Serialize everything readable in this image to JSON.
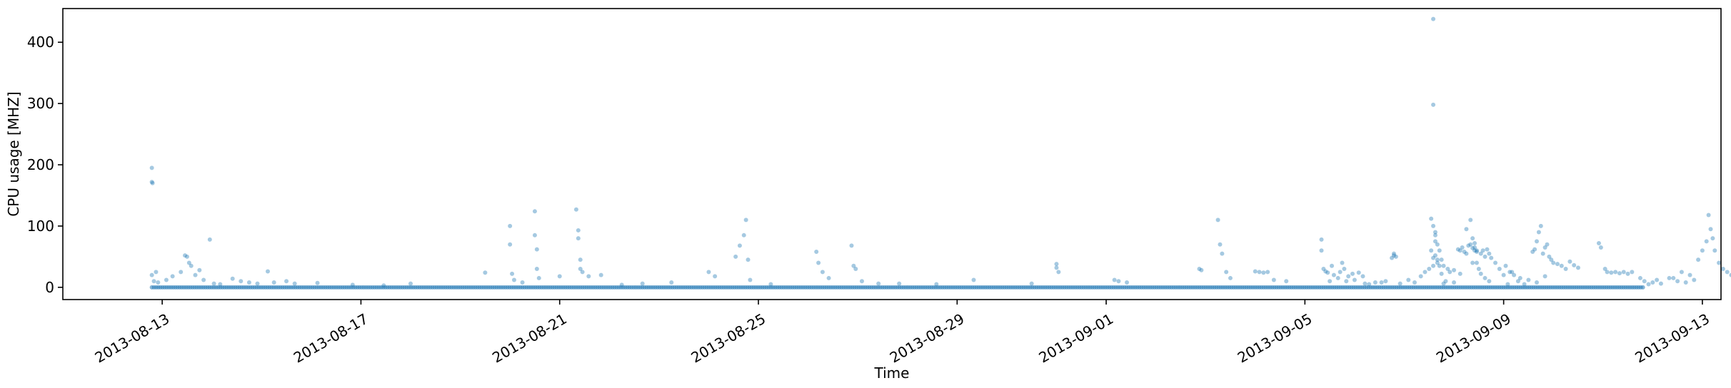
{
  "chart_data": {
    "type": "scatter",
    "title": "",
    "xlabel": "Time",
    "ylabel": "CPU usage [MHZ]",
    "x_type": "time",
    "xlim": [
      "2013-08-11T00:00",
      "2013-09-13T09:00"
    ],
    "ylim": [
      -20,
      455
    ],
    "x_ticks": [
      "2013-08-13",
      "2013-08-17",
      "2013-08-21",
      "2013-08-25",
      "2013-08-29",
      "2013-09-01",
      "2013-09-05",
      "2013-09-09",
      "2013-09-13"
    ],
    "y_ticks": [
      0,
      100,
      200,
      300,
      400
    ],
    "marker_color": "#1f77b4",
    "marker_alpha": 0.4,
    "grid": false,
    "baseline": {
      "start": "2013-08-12T19:00",
      "end": "2013-09-11T20:00",
      "value": 0
    },
    "series": [
      {
        "name": "CPU usage",
        "points": [
          [
            "2013-08-12T19:00",
            195
          ],
          [
            "2013-08-12T19:00",
            172
          ],
          [
            "2013-08-12T19:20",
            170
          ],
          [
            "2013-08-12T19:00",
            20
          ],
          [
            "2013-08-12T21:00",
            25
          ],
          [
            "2013-08-12T20:00",
            10
          ],
          [
            "2013-08-12T22:00",
            8
          ],
          [
            "2013-08-13T02:00",
            12
          ],
          [
            "2013-08-13T05:00",
            18
          ],
          [
            "2013-08-13T09:00",
            25
          ],
          [
            "2013-08-13T11:00",
            52
          ],
          [
            "2013-08-13T12:00",
            50
          ],
          [
            "2013-08-13T13:00",
            40
          ],
          [
            "2013-08-13T14:00",
            35
          ],
          [
            "2013-08-13T16:00",
            20
          ],
          [
            "2013-08-13T18:00",
            28
          ],
          [
            "2013-08-13T20:00",
            12
          ],
          [
            "2013-08-13T23:00",
            78
          ],
          [
            "2013-08-14T01:00",
            6
          ],
          [
            "2013-08-14T04:00",
            5
          ],
          [
            "2013-08-14T10:00",
            14
          ],
          [
            "2013-08-14T14:00",
            10
          ],
          [
            "2013-08-14T18:00",
            8
          ],
          [
            "2013-08-14T22:00",
            6
          ],
          [
            "2013-08-15T03:00",
            26
          ],
          [
            "2013-08-15T06:00",
            8
          ],
          [
            "2013-08-15T12:00",
            10
          ],
          [
            "2013-08-15T16:00",
            6
          ],
          [
            "2013-08-16T03:00",
            7
          ],
          [
            "2013-08-16T20:00",
            4
          ],
          [
            "2013-08-17T11:00",
            3
          ],
          [
            "2013-08-18T00:00",
            6
          ],
          [
            "2013-08-19T12:00",
            24
          ],
          [
            "2013-08-20T00:00",
            100
          ],
          [
            "2013-08-20T00:00",
            70
          ],
          [
            "2013-08-20T01:00",
            22
          ],
          [
            "2013-08-20T02:00",
            12
          ],
          [
            "2013-08-20T06:00",
            8
          ],
          [
            "2013-08-20T12:00",
            124
          ],
          [
            "2013-08-20T12:00",
            85
          ],
          [
            "2013-08-20T13:00",
            62
          ],
          [
            "2013-08-20T13:00",
            30
          ],
          [
            "2013-08-20T14:00",
            15
          ],
          [
            "2013-08-21T00:00",
            18
          ],
          [
            "2013-08-21T08:00",
            127
          ],
          [
            "2013-08-21T09:00",
            93
          ],
          [
            "2013-08-21T09:00",
            80
          ],
          [
            "2013-08-21T10:00",
            45
          ],
          [
            "2013-08-21T10:00",
            30
          ],
          [
            "2013-08-21T11:00",
            25
          ],
          [
            "2013-08-21T14:00",
            18
          ],
          [
            "2013-08-21T20:00",
            20
          ],
          [
            "2013-08-22T06:00",
            4
          ],
          [
            "2013-08-22T16:00",
            6
          ],
          [
            "2013-08-23T06:00",
            8
          ],
          [
            "2013-08-24T00:00",
            25
          ],
          [
            "2013-08-24T03:00",
            18
          ],
          [
            "2013-08-24T13:00",
            50
          ],
          [
            "2013-08-24T15:00",
            68
          ],
          [
            "2013-08-24T17:00",
            85
          ],
          [
            "2013-08-24T18:00",
            110
          ],
          [
            "2013-08-24T19:00",
            45
          ],
          [
            "2013-08-24T20:00",
            12
          ],
          [
            "2013-08-25T06:00",
            5
          ],
          [
            "2013-08-26T04:00",
            58
          ],
          [
            "2013-08-26T05:00",
            40
          ],
          [
            "2013-08-26T07:00",
            25
          ],
          [
            "2013-08-26T10:00",
            15
          ],
          [
            "2013-08-26T21:00",
            68
          ],
          [
            "2013-08-26T22:00",
            35
          ],
          [
            "2013-08-26T23:00",
            30
          ],
          [
            "2013-08-27T02:00",
            10
          ],
          [
            "2013-08-27T10:00",
            6
          ],
          [
            "2013-08-27T20:00",
            6
          ],
          [
            "2013-08-28T14:00",
            5
          ],
          [
            "2013-08-29T08:00",
            12
          ],
          [
            "2013-08-30T12:00",
            6
          ],
          [
            "2013-08-31T00:00",
            38
          ],
          [
            "2013-08-31T00:00",
            32
          ],
          [
            "2013-08-31T01:00",
            25
          ],
          [
            "2013-09-01T04:00",
            12
          ],
          [
            "2013-09-01T06:00",
            10
          ],
          [
            "2013-09-01T10:00",
            8
          ],
          [
            "2013-09-02T21:00",
            30
          ],
          [
            "2013-09-02T22:00",
            28
          ],
          [
            "2013-09-03T06:00",
            110
          ],
          [
            "2013-09-03T07:00",
            70
          ],
          [
            "2013-09-03T08:00",
            55
          ],
          [
            "2013-09-03T10:00",
            25
          ],
          [
            "2013-09-03T12:00",
            15
          ],
          [
            "2013-09-04T00:00",
            26
          ],
          [
            "2013-09-04T02:00",
            25
          ],
          [
            "2013-09-04T04:00",
            24
          ],
          [
            "2013-09-04T06:00",
            25
          ],
          [
            "2013-09-04T09:00",
            12
          ],
          [
            "2013-09-04T15:00",
            10
          ],
          [
            "2013-09-05T08:00",
            78
          ],
          [
            "2013-09-05T08:00",
            60
          ],
          [
            "2013-09-05T09:00",
            30
          ],
          [
            "2013-09-05T10:00",
            26
          ],
          [
            "2013-09-05T11:00",
            24
          ],
          [
            "2013-09-05T13:00",
            35
          ],
          [
            "2013-09-05T18:00",
            40
          ],
          [
            "2013-09-05T20:00",
            10
          ],
          [
            "2013-09-06T05:00",
            6
          ],
          [
            "2013-09-06T13:00",
            8
          ],
          [
            "2013-09-06T19:00",
            52
          ],
          [
            "2013-09-06T19:00",
            55
          ],
          [
            "2013-09-06T20:00",
            50
          ],
          [
            "2013-09-07T14:00",
            48
          ],
          [
            "2013-09-07T15:00",
            52
          ],
          [
            "2013-09-07T16:00",
            45
          ],
          [
            "2013-09-07T17:00",
            35
          ],
          [
            "2013-09-07T19:00",
            6
          ],
          [
            "2013-09-08T00:00",
            8
          ],
          [
            "2013-09-08T03:00",
            22
          ],
          [
            "2013-09-08T06:00",
            95
          ],
          [
            "2013-09-08T08:00",
            110
          ],
          [
            "2013-09-08T09:00",
            80
          ],
          [
            "2013-09-08T10:00",
            60
          ],
          [
            "2013-09-08T11:00",
            40
          ],
          [
            "2013-09-08T12:00",
            30
          ],
          [
            "2013-09-08T13:00",
            22
          ],
          [
            "2013-09-08T15:00",
            15
          ],
          [
            "2013-09-08T17:00",
            10
          ],
          [
            "2013-09-09T00:00",
            20
          ],
          [
            "2013-09-09T04:00",
            25
          ],
          [
            "2013-09-09T08:00",
            15
          ],
          [
            "2013-09-09T12:00",
            12
          ],
          [
            "2013-09-09T16:00",
            8
          ],
          [
            "2013-09-09T20:00",
            18
          ],
          [
            "2013-09-05T12:00",
            10
          ],
          [
            "2013-09-05T14:00",
            20
          ],
          [
            "2013-09-05T16:00",
            15
          ],
          [
            "2013-09-05T17:00",
            25
          ],
          [
            "2013-09-05T19:00",
            30
          ],
          [
            "2013-09-05T21:00",
            18
          ],
          [
            "2013-09-05T23:00",
            22
          ],
          [
            "2013-09-06T00:00",
            12
          ],
          [
            "2013-09-06T02:00",
            24
          ],
          [
            "2013-09-06T04:00",
            18
          ],
          [
            "2013-09-06T07:00",
            5
          ],
          [
            "2013-09-06T10:00",
            8
          ],
          [
            "2013-09-06T15:00",
            10
          ],
          [
            "2013-09-06T18:00",
            48
          ],
          [
            "2013-09-06T22:00",
            6
          ],
          [
            "2013-09-07T02:00",
            12
          ],
          [
            "2013-09-07T05:00",
            8
          ],
          [
            "2013-09-07T08:00",
            18
          ],
          [
            "2013-09-07T10:00",
            25
          ],
          [
            "2013-09-07T12:00",
            30
          ],
          [
            "2013-09-07T13:00",
            60
          ],
          [
            "2013-09-07T14:00",
            35
          ],
          [
            "2013-09-07T15:00",
            90
          ],
          [
            "2013-09-07T15:00",
            75
          ],
          [
            "2013-09-07T16:00",
            40
          ],
          [
            "2013-09-07T18:00",
            22
          ],
          [
            "2013-09-07T20:00",
            10
          ],
          [
            "2013-09-08T09:00",
            40
          ],
          [
            "2013-09-08T10:00",
            65
          ],
          [
            "2013-09-08T11:00",
            58
          ],
          [
            "2013-09-08T13:00",
            55
          ],
          [
            "2013-09-08T14:00",
            60
          ],
          [
            "2013-09-08T15:00",
            50
          ],
          [
            "2013-09-08T16:00",
            62
          ],
          [
            "2013-09-08T17:00",
            55
          ],
          [
            "2013-09-08T18:00",
            48
          ],
          [
            "2013-09-08T20:00",
            40
          ],
          [
            "2013-09-08T22:00",
            30
          ],
          [
            "2013-09-09T01:00",
            35
          ],
          [
            "2013-09-09T03:00",
            25
          ],
          [
            "2013-09-09T05:00",
            20
          ],
          [
            "2013-09-09T07:00",
            10
          ],
          [
            "2013-09-07T14:00",
            438
          ],
          [
            "2013-09-07T14:00",
            298
          ],
          [
            "2013-09-07T13:00",
            112
          ],
          [
            "2013-09-07T14:00",
            100
          ],
          [
            "2013-09-07T15:00",
            85
          ],
          [
            "2013-09-07T16:00",
            70
          ],
          [
            "2013-09-07T17:00",
            60
          ],
          [
            "2013-09-07T18:00",
            45
          ],
          [
            "2013-09-07T19:00",
            35
          ],
          [
            "2013-09-07T21:00",
            30
          ],
          [
            "2013-09-07T22:00",
            25
          ],
          [
            "2013-09-08T00:00",
            28
          ],
          [
            "2013-09-08T02:00",
            62
          ],
          [
            "2013-09-08T03:00",
            60
          ],
          [
            "2013-09-08T04:00",
            65
          ],
          [
            "2013-09-08T05:00",
            58
          ],
          [
            "2013-09-08T06:00",
            55
          ],
          [
            "2013-09-08T07:00",
            68
          ],
          [
            "2013-09-08T08:00",
            70
          ],
          [
            "2013-09-08T09:00",
            64
          ],
          [
            "2013-09-08T10:00",
            72
          ],
          [
            "2013-09-08T11:00",
            60
          ],
          [
            "2013-09-09T02:00",
            5
          ],
          [
            "2013-09-09T10:00",
            5
          ],
          [
            "2013-09-09T14:00",
            58
          ],
          [
            "2013-09-09T15:00",
            62
          ],
          [
            "2013-09-09T16:00",
            75
          ],
          [
            "2013-09-09T17:00",
            90
          ],
          [
            "2013-09-09T18:00",
            100
          ],
          [
            "2013-09-09T19:00",
            55
          ],
          [
            "2013-09-09T20:00",
            65
          ],
          [
            "2013-09-09T21:00",
            70
          ],
          [
            "2013-09-09T22:00",
            50
          ],
          [
            "2013-09-09T23:00",
            45
          ],
          [
            "2013-09-10T00:00",
            40
          ],
          [
            "2013-09-10T02:00",
            38
          ],
          [
            "2013-09-10T04:00",
            35
          ],
          [
            "2013-09-10T06:00",
            30
          ],
          [
            "2013-09-10T08:00",
            42
          ],
          [
            "2013-09-10T10:00",
            36
          ],
          [
            "2013-09-10T12:00",
            32
          ],
          [
            "2013-09-10T22:00",
            72
          ],
          [
            "2013-09-10T23:00",
            65
          ],
          [
            "2013-09-11T01:00",
            30
          ],
          [
            "2013-09-11T02:00",
            25
          ],
          [
            "2013-09-11T04:00",
            24
          ],
          [
            "2013-09-11T06:00",
            25
          ],
          [
            "2013-09-11T08:00",
            23
          ],
          [
            "2013-09-11T10:00",
            25
          ],
          [
            "2013-09-11T12:00",
            22
          ],
          [
            "2013-09-11T14:00",
            25
          ],
          [
            "2013-09-11T18:00",
            15
          ],
          [
            "2013-09-11T20:00",
            10
          ],
          [
            "2013-09-11T22:00",
            5
          ],
          [
            "2013-09-12T00:00",
            8
          ],
          [
            "2013-09-12T02:00",
            12
          ],
          [
            "2013-09-12T04:00",
            6
          ],
          [
            "2013-09-12T08:00",
            15
          ],
          [
            "2013-09-12T12:00",
            10
          ],
          [
            "2013-09-12T16:00",
            8
          ],
          [
            "2013-09-12T20:00",
            12
          ],
          [
            "2013-09-12T10:00",
            15
          ],
          [
            "2013-09-12T14:00",
            25
          ],
          [
            "2013-09-12T18:00",
            20
          ],
          [
            "2013-09-12T22:00",
            45
          ],
          [
            "2013-09-13T00:00",
            60
          ],
          [
            "2013-09-13T02:00",
            75
          ],
          [
            "2013-09-13T03:00",
            118
          ],
          [
            "2013-09-13T04:00",
            95
          ],
          [
            "2013-09-13T05:00",
            80
          ],
          [
            "2013-09-13T06:00",
            60
          ],
          [
            "2013-09-13T08:00",
            40
          ],
          [
            "2013-09-13T10:00",
            30
          ],
          [
            "2013-09-13T12:00",
            25
          ],
          [
            "2013-09-13T14:00",
            20
          ],
          [
            "2013-09-13T16:00",
            18
          ]
        ]
      }
    ]
  }
}
